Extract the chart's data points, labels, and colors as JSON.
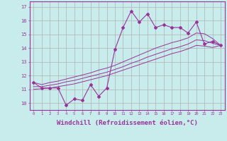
{
  "background_color": "#c8ecec",
  "grid_color": "#b0b0b0",
  "line_color": "#993399",
  "xlabel": "Windchill (Refroidissement éolien,°C)",
  "xlabel_fontsize": 6.5,
  "xtick_labels": [
    "0",
    "1",
    "2",
    "3",
    "4",
    "5",
    "6",
    "7",
    "8",
    "9",
    "10",
    "11",
    "12",
    "13",
    "14",
    "15",
    "16",
    "17",
    "18",
    "19",
    "20",
    "21",
    "22",
    "23"
  ],
  "ytick_vals": [
    10,
    11,
    12,
    13,
    14,
    15,
    16,
    17
  ],
  "ylim": [
    9.5,
    17.4
  ],
  "xlim": [
    -0.5,
    23.5
  ],
  "main_line": [
    11.5,
    11.1,
    11.1,
    11.1,
    9.85,
    10.3,
    10.2,
    11.35,
    10.5,
    11.1,
    13.9,
    15.5,
    16.7,
    15.9,
    16.5,
    15.5,
    15.7,
    15.5,
    15.5,
    15.1,
    15.9,
    14.3,
    14.5,
    14.2
  ],
  "line2": [
    11.5,
    11.35,
    11.5,
    11.6,
    11.75,
    11.9,
    12.05,
    12.2,
    12.4,
    12.55,
    12.75,
    13.0,
    13.25,
    13.5,
    13.75,
    14.0,
    14.2,
    14.4,
    14.55,
    14.75,
    15.1,
    15.05,
    14.7,
    14.2
  ],
  "line3": [
    11.2,
    11.2,
    11.3,
    11.4,
    11.55,
    11.65,
    11.8,
    11.95,
    12.1,
    12.25,
    12.45,
    12.65,
    12.9,
    13.1,
    13.35,
    13.55,
    13.75,
    13.95,
    14.1,
    14.3,
    14.6,
    14.55,
    14.35,
    14.2
  ],
  "line4": [
    11.0,
    11.05,
    11.1,
    11.2,
    11.3,
    11.4,
    11.55,
    11.7,
    11.85,
    12.0,
    12.2,
    12.4,
    12.6,
    12.8,
    13.0,
    13.2,
    13.4,
    13.6,
    13.75,
    13.95,
    14.2,
    14.15,
    14.05,
    14.2
  ]
}
